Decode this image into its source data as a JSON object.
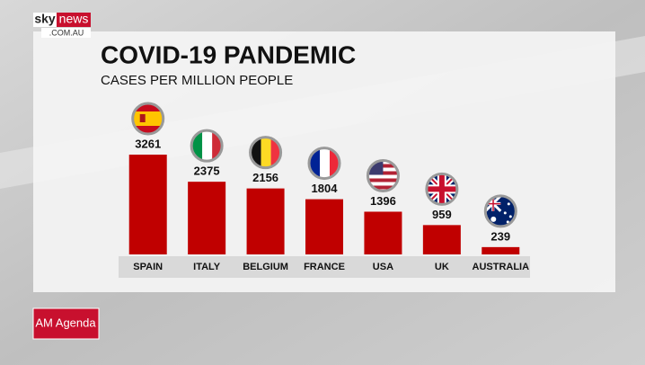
{
  "logo": {
    "brand": "sky",
    "name": "news",
    "domain": ".COM.AU"
  },
  "program": "AM Agenda",
  "chart_data": {
    "type": "bar",
    "title": "COVID-19 PANDEMIC",
    "subtitle": "CASES PER MILLION PEOPLE",
    "categories": [
      "SPAIN",
      "ITALY",
      "BELGIUM",
      "FRANCE",
      "USA",
      "UK",
      "AUSTRALIA"
    ],
    "values": [
      3261,
      2375,
      2156,
      1804,
      1396,
      959,
      239
    ],
    "color": "#c00000"
  }
}
